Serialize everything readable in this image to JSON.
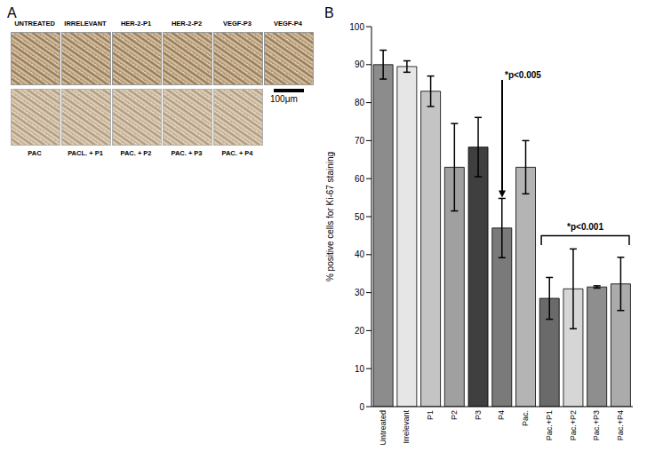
{
  "panel_a": {
    "label": "A",
    "top_row": [
      "UNTREATED",
      "IRRELEVANT",
      "HER-2-P1",
      "HER-2-P2",
      "VEGF-P3",
      "VEGF-P4"
    ],
    "bottom_row": [
      "PAC",
      "PACL. + P1",
      "PAC. + P2",
      "PAC. + P3",
      "PAC. + P4"
    ],
    "scale_bar": "100μm"
  },
  "panel_b": {
    "label": "B"
  },
  "chart_data": {
    "type": "bar",
    "y_label": "% positive cells for Ki-67 staining",
    "categories": [
      "Untreated",
      "Irrelevant",
      "P1",
      "P2",
      "P3",
      "P4",
      "Pac.",
      "Pac.+P1",
      "Pac.+P2",
      "Pac.+P3",
      "Pac.+P4"
    ],
    "values": [
      90,
      89.5,
      83,
      63,
      68.3,
      47,
      63,
      28.5,
      31,
      31.5,
      32.3
    ],
    "errors": [
      3.8,
      1.5,
      4,
      11.5,
      7.8,
      7.8,
      7,
      5.5,
      10.5,
      0.3,
      7
    ],
    "colors": [
      "#8c8c8c",
      "#e6e6e6",
      "#c4c4c4",
      "#a0a0a0",
      "#3f3f3f",
      "#7a7a7a",
      "#b4b4b4",
      "#6a6a6a",
      "#d6d6d6",
      "#8e8e8e",
      "#ababab"
    ],
    "ylim": [
      0,
      100
    ],
    "yticks": [
      0,
      10,
      20,
      30,
      40,
      50,
      60,
      70,
      80,
      90,
      100
    ],
    "annotations": [
      "*p<0.005",
      "*p<0.001"
    ]
  }
}
